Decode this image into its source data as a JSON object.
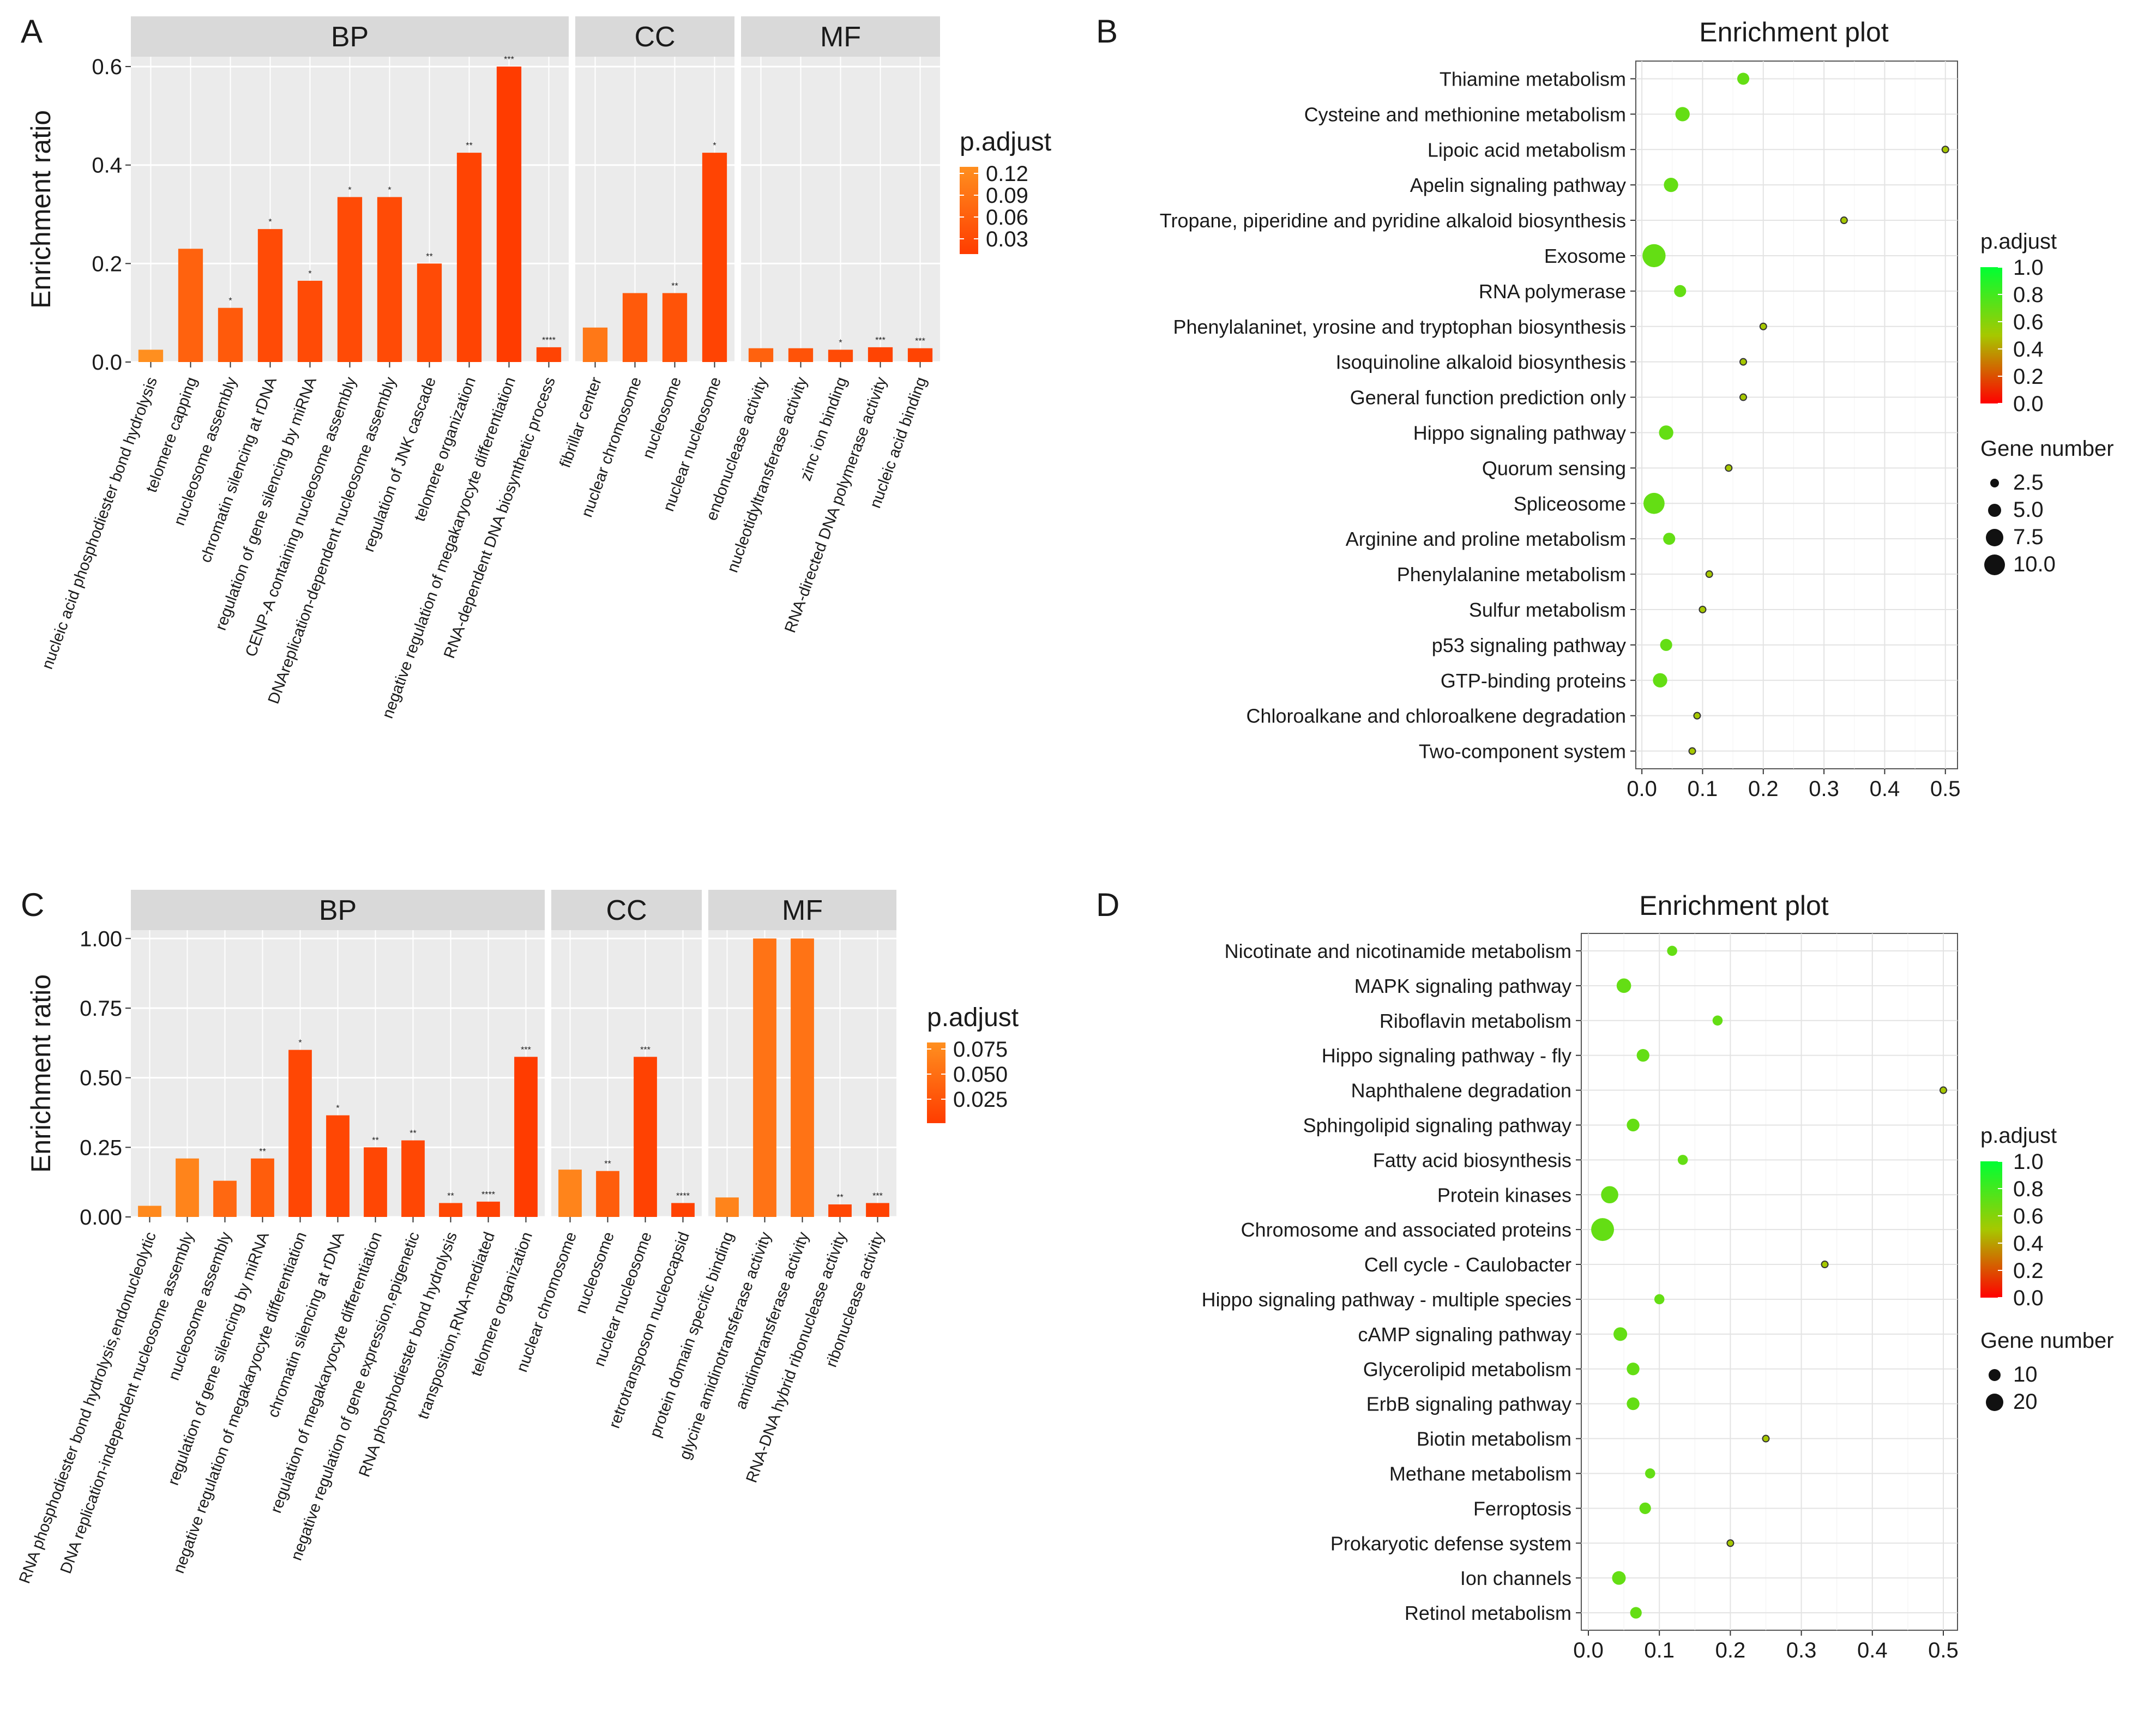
{
  "panels": {
    "A": {
      "letter": "A",
      "ylabel": "Enrichment ratio",
      "legend": {
        "title": "p.adjust",
        "ticks": [
          "0.12",
          "0.09",
          "0.06",
          "0.03"
        ]
      },
      "facets": [
        {
          "label": "BP",
          "cats": [
            {
              "name": "nucleic acid phosphodiester bond hydrolysis",
              "value": 0.025,
              "padj": 0.12,
              "sig": ""
            },
            {
              "name": "telomere capping",
              "value": 0.23,
              "padj": 0.06,
              "sig": ""
            },
            {
              "name": "nucleosome assembly",
              "value": 0.11,
              "padj": 0.05,
              "sig": "*"
            },
            {
              "name": "chromatin silencing at rDNA",
              "value": 0.27,
              "padj": 0.03,
              "sig": "*"
            },
            {
              "name": "regulation of gene silencing by miRNA",
              "value": 0.165,
              "padj": 0.03,
              "sig": "*"
            },
            {
              "name": "CENP-A containing nucleosome assembly",
              "value": 0.335,
              "padj": 0.03,
              "sig": "*"
            },
            {
              "name": "DNAreplication-dependent nucleosome assembly",
              "value": 0.335,
              "padj": 0.03,
              "sig": "*"
            },
            {
              "name": "regulation of JNK cascade",
              "value": 0.2,
              "padj": 0.03,
              "sig": "**"
            },
            {
              "name": "telomere organization",
              "value": 0.425,
              "padj": 0.02,
              "sig": "**"
            },
            {
              "name": "negative regulation of megakaryocyte differentiation",
              "value": 0.6,
              "padj": 0.01,
              "sig": "***"
            },
            {
              "name": "RNA-dependent DNA biosynthetic process",
              "value": 0.03,
              "padj": 0.02,
              "sig": "****"
            }
          ]
        },
        {
          "label": "CC",
          "cats": [
            {
              "name": "fibrillar center",
              "value": 0.07,
              "padj": 0.09,
              "sig": ""
            },
            {
              "name": "nuclear chromosome",
              "value": 0.14,
              "padj": 0.05,
              "sig": ""
            },
            {
              "name": "nucleosome",
              "value": 0.14,
              "padj": 0.04,
              "sig": "**"
            },
            {
              "name": "nuclear nucleosome",
              "value": 0.425,
              "padj": 0.02,
              "sig": "*"
            }
          ]
        },
        {
          "label": "MF",
          "cats": [
            {
              "name": "endonuclease activity",
              "value": 0.028,
              "padj": 0.06,
              "sig": ""
            },
            {
              "name": "nucleotidyltransferase activity",
              "value": 0.028,
              "padj": 0.04,
              "sig": ""
            },
            {
              "name": "zinc ion binding",
              "value": 0.025,
              "padj": 0.03,
              "sig": "*"
            },
            {
              "name": "RNA-directed DNA polymerase activity",
              "value": 0.03,
              "padj": 0.02,
              "sig": "***"
            },
            {
              "name": "nucleic acid binding",
              "value": 0.028,
              "padj": 0.02,
              "sig": "***"
            }
          ]
        }
      ]
    },
    "B": {
      "letter": "B",
      "title": "Enrichment plot",
      "padj_title": "p.adjust",
      "padj_ticks": [
        "1.0",
        "0.8",
        "0.6",
        "0.4",
        "0.2",
        "0.0"
      ],
      "gene_title": "Gene number",
      "gene_ticks": [
        "2.5",
        "5.0",
        "7.5",
        "10.0"
      ],
      "x_ticks": [
        "0.0",
        "0.1",
        "0.2",
        "0.3",
        "0.4",
        "0.5"
      ]
    },
    "C": {
      "letter": "C",
      "ylabel": "Enrichment ratio",
      "legend": {
        "title": "p.adjust",
        "ticks": [
          "0.075",
          "0.050",
          "0.025"
        ]
      },
      "facets": [
        {
          "label": "BP",
          "cats": [
            {
              "name": "RNA phosphodiester bond hydrolysis,endonucleolytic",
              "value": 0.04,
              "padj": 0.08,
              "sig": ""
            },
            {
              "name": "DNA replication-independent nucleosome assembly",
              "value": 0.21,
              "padj": 0.075,
              "sig": ""
            },
            {
              "name": "nucleosome assembly",
              "value": 0.13,
              "padj": 0.05,
              "sig": ""
            },
            {
              "name": "regulation of gene silencing by miRNA",
              "value": 0.21,
              "padj": 0.04,
              "sig": "**"
            },
            {
              "name": "negative regulation of megakaryocyte differentiation",
              "value": 0.6,
              "padj": 0.02,
              "sig": "*"
            },
            {
              "name": "chromatin silencing at rDNA",
              "value": 0.365,
              "padj": 0.02,
              "sig": "*"
            },
            {
              "name": "regulation of megakaryocyte differentiation",
              "value": 0.25,
              "padj": 0.02,
              "sig": "**"
            },
            {
              "name": "negative regulation of gene expression,epigenetic",
              "value": 0.275,
              "padj": 0.02,
              "sig": "**"
            },
            {
              "name": "RNA phosphodiester bond hydrolysis",
              "value": 0.05,
              "padj": 0.02,
              "sig": "**"
            },
            {
              "name": "transposition,RNA-mediated",
              "value": 0.055,
              "padj": 0.015,
              "sig": "****"
            },
            {
              "name": "telomere organization",
              "value": 0.575,
              "padj": 0.01,
              "sig": "***"
            }
          ]
        },
        {
          "label": "CC",
          "cats": [
            {
              "name": "nuclear chromosome",
              "value": 0.17,
              "padj": 0.075,
              "sig": ""
            },
            {
              "name": "nucleosome",
              "value": 0.165,
              "padj": 0.04,
              "sig": "**"
            },
            {
              "name": "nuclear nucleosome",
              "value": 0.575,
              "padj": 0.015,
              "sig": "***"
            },
            {
              "name": "retrotransposon nucleocapsid",
              "value": 0.05,
              "padj": 0.015,
              "sig": "****"
            }
          ]
        },
        {
          "label": "MF",
          "cats": [
            {
              "name": "protein domain specific binding",
              "value": 0.07,
              "padj": 0.075,
              "sig": ""
            },
            {
              "name": "glycine amidinotransferase activity",
              "value": 1.0,
              "padj": 0.06,
              "sig": ""
            },
            {
              "name": "amidinotransferase activity",
              "value": 1.0,
              "padj": 0.06,
              "sig": ""
            },
            {
              "name": "RNA-DNA hybrid ribonuclease activity",
              "value": 0.045,
              "padj": 0.02,
              "sig": "**"
            },
            {
              "name": "ribonuclease activity",
              "value": 0.05,
              "padj": 0.015,
              "sig": "***"
            }
          ]
        }
      ]
    },
    "D": {
      "letter": "D",
      "title": "Enrichment plot",
      "padj_title": "p.adjust",
      "padj_ticks": [
        "1.0",
        "0.8",
        "0.6",
        "0.4",
        "0.2",
        "0.0"
      ],
      "gene_title": "Gene number",
      "gene_ticks": [
        "10",
        "20"
      ],
      "x_ticks": [
        "0.0",
        "0.1",
        "0.2",
        "0.3",
        "0.4",
        "0.5"
      ]
    }
  },
  "chart_data": [
    {
      "panel": "A",
      "type": "bar",
      "title": "",
      "xlabel": "",
      "ylabel": "Enrichment ratio",
      "ylim": [
        0,
        0.62
      ],
      "y_ticks": [
        0.0,
        0.2,
        0.4,
        0.6
      ],
      "facets": [
        "BP",
        "CC",
        "MF"
      ],
      "color_scale": {
        "name": "p.adjust",
        "range": [
          0.01,
          0.12
        ],
        "low_color": "#ff3c00",
        "high_color": "#ff8f1f"
      }
    },
    {
      "panel": "B",
      "type": "scatter",
      "title": "Enrichment plot",
      "xlabel": "",
      "ylabel": "",
      "xlim": [
        -0.01,
        0.52
      ],
      "x_ticks": [
        0.0,
        0.1,
        0.2,
        0.3,
        0.4,
        0.5
      ],
      "color_scale": {
        "name": "p.adjust",
        "range": [
          0.0,
          1.0
        ],
        "low_color": "#ff0000",
        "mid_color": "#a6c800",
        "high_color": "#00ff33"
      },
      "size_scale": {
        "name": "Gene number",
        "range": [
          1,
          11
        ]
      },
      "categories": [
        "Thiamine metabolism",
        "Cysteine and methionine metabolism",
        "Lipoic acid metabolism",
        "Apelin signaling pathway",
        "Tropane, piperidine and pyridine alkaloid biosynthesis",
        "Exosome",
        "RNA polymerase",
        "Phenylalaninet, yrosine and tryptophan biosynthesis",
        "Isoquinoline alkaloid biosynthesis",
        "General function prediction only",
        "Hippo signaling pathway",
        "Quorum sensing",
        "Spliceosome",
        "Arginine and proline metabolism",
        "Phenylalanine metabolism",
        "Sulfur metabolism",
        "p53 signaling pathway",
        "GTP-binding proteins",
        "Chloroalkane and chloroalkene degradation",
        "Two-component system"
      ],
      "points": [
        {
          "x": 0.167,
          "genes": 2,
          "padj": 0.7
        },
        {
          "x": 0.067,
          "genes": 3,
          "padj": 0.7
        },
        {
          "x": 0.5,
          "genes": 1,
          "padj": 0.5
        },
        {
          "x": 0.048,
          "genes": 3,
          "padj": 0.7
        },
        {
          "x": 0.333,
          "genes": 1,
          "padj": 0.5
        },
        {
          "x": 0.02,
          "genes": 10,
          "padj": 0.7
        },
        {
          "x": 0.063,
          "genes": 2,
          "padj": 0.7
        },
        {
          "x": 0.2,
          "genes": 1,
          "padj": 0.5
        },
        {
          "x": 0.167,
          "genes": 1,
          "padj": 0.5
        },
        {
          "x": 0.167,
          "genes": 1,
          "padj": 0.5
        },
        {
          "x": 0.04,
          "genes": 3,
          "padj": 0.7
        },
        {
          "x": 0.143,
          "genes": 1,
          "padj": 0.5
        },
        {
          "x": 0.02,
          "genes": 8,
          "padj": 0.7
        },
        {
          "x": 0.045,
          "genes": 2,
          "padj": 0.7
        },
        {
          "x": 0.111,
          "genes": 1,
          "padj": 0.5
        },
        {
          "x": 0.1,
          "genes": 1,
          "padj": 0.5
        },
        {
          "x": 0.04,
          "genes": 2,
          "padj": 0.7
        },
        {
          "x": 0.03,
          "genes": 3,
          "padj": 0.7
        },
        {
          "x": 0.091,
          "genes": 1,
          "padj": 0.5
        },
        {
          "x": 0.083,
          "genes": 1,
          "padj": 0.5
        }
      ]
    },
    {
      "panel": "C",
      "type": "bar",
      "title": "",
      "xlabel": "",
      "ylabel": "Enrichment ratio",
      "ylim": [
        0,
        1.03
      ],
      "y_ticks": [
        0.0,
        0.25,
        0.5,
        0.75,
        1.0
      ],
      "y_tick_labels": [
        "0.00",
        "0.25",
        "0.50",
        "0.75",
        "1.00"
      ],
      "facets": [
        "BP",
        "CC",
        "MF"
      ],
      "color_scale": {
        "name": "p.adjust",
        "range": [
          0.01,
          0.085
        ],
        "low_color": "#ff3c00",
        "high_color": "#ff8f1f"
      }
    },
    {
      "panel": "D",
      "type": "scatter",
      "title": "Enrichment plot",
      "xlabel": "",
      "ylabel": "",
      "xlim": [
        -0.01,
        0.52
      ],
      "x_ticks": [
        0.0,
        0.1,
        0.2,
        0.3,
        0.4,
        0.5
      ],
      "color_scale": {
        "name": "p.adjust",
        "range": [
          0.0,
          1.0
        ],
        "low_color": "#ff0000",
        "mid_color": "#a6c800",
        "high_color": "#00ff33"
      },
      "size_scale": {
        "name": "Gene number",
        "range": [
          1,
          25
        ]
      },
      "categories": [
        "Nicotinate and nicotinamide metabolism",
        "MAPK signaling pathway",
        "Riboflavin metabolism",
        "Hippo signaling pathway - fly",
        "Naphthalene degradation",
        "Sphingolipid signaling pathway",
        "Fatty acid biosynthesis",
        "Protein kinases",
        "Chromosome and associated proteins",
        "Cell cycle - Caulobacter",
        "Hippo signaling pathway - multiple species",
        "cAMP signaling pathway",
        "Glycerolipid metabolism",
        "ErbB signaling pathway",
        "Biotin metabolism",
        "Methane metabolism",
        "Ferroptosis",
        "Prokaryotic defense system",
        "Ion channels",
        "Retinol metabolism"
      ],
      "points": [
        {
          "x": 0.118,
          "genes": 2,
          "padj": 0.7
        },
        {
          "x": 0.05,
          "genes": 6,
          "padj": 0.7
        },
        {
          "x": 0.182,
          "genes": 2,
          "padj": 0.7
        },
        {
          "x": 0.077,
          "genes": 4,
          "padj": 0.7
        },
        {
          "x": 0.5,
          "genes": 1,
          "padj": 0.5
        },
        {
          "x": 0.063,
          "genes": 4,
          "padj": 0.7
        },
        {
          "x": 0.133,
          "genes": 2,
          "padj": 0.7
        },
        {
          "x": 0.03,
          "genes": 10,
          "padj": 0.7
        },
        {
          "x": 0.02,
          "genes": 22,
          "padj": 0.7
        },
        {
          "x": 0.333,
          "genes": 1,
          "padj": 0.5
        },
        {
          "x": 0.1,
          "genes": 2,
          "padj": 0.7
        },
        {
          "x": 0.045,
          "genes": 5,
          "padj": 0.7
        },
        {
          "x": 0.063,
          "genes": 4,
          "padj": 0.7
        },
        {
          "x": 0.063,
          "genes": 4,
          "padj": 0.7
        },
        {
          "x": 0.25,
          "genes": 1,
          "padj": 0.5
        },
        {
          "x": 0.087,
          "genes": 2,
          "padj": 0.7
        },
        {
          "x": 0.08,
          "genes": 3,
          "padj": 0.7
        },
        {
          "x": 0.2,
          "genes": 1,
          "padj": 0.5
        },
        {
          "x": 0.043,
          "genes": 5,
          "padj": 0.7
        },
        {
          "x": 0.067,
          "genes": 3,
          "padj": 0.7
        }
      ]
    }
  ]
}
